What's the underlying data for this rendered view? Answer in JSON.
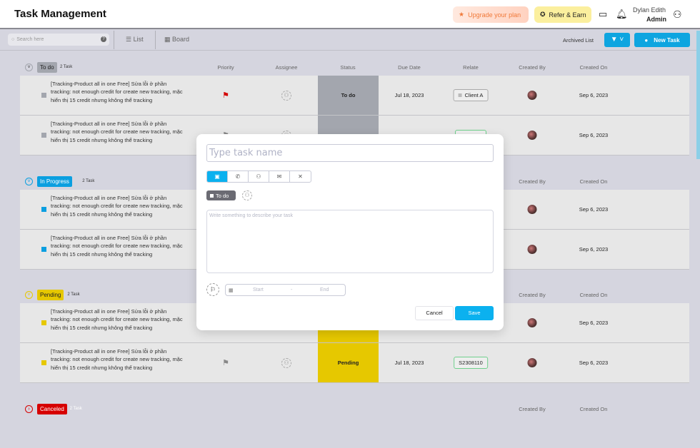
{
  "header": {
    "title": "Task Management",
    "upgrade": "Upgrade your plan",
    "refer": "Refer & Earn",
    "user_name": "Dylan Edith",
    "user_role": "Admin"
  },
  "toolbar": {
    "search_placeholder": "Search here",
    "help": "?",
    "list": "List",
    "board": "Board",
    "archived": "Archived List",
    "filter": "▼ ˅",
    "new_task": "New Task"
  },
  "columns": {
    "priority": "Priority",
    "assignee": "Assignee",
    "status": "Status",
    "due": "Due Date",
    "relate": "Relate",
    "created_by": "Created By",
    "created_on": "Created On"
  },
  "colors": {
    "todo": "#a3a6ae",
    "in_progress": "#0b9fe0",
    "pending": "#e6c800",
    "canceled": "#d60000",
    "accent": "#0bb1ef"
  },
  "sections": [
    {
      "label": "To do",
      "count": "2 Task",
      "color": "#a3a6ae",
      "text_color": "#222",
      "toggle": "˅",
      "show_cols": true,
      "rows": [
        {
          "task": "[Tracking-Product all in one Free]  Sửa lỗi ở phần tracking: not enough credit for create new tracking, mặc hiển thị 15 credit nhưng không thể tracking",
          "flag": "red",
          "status": "To do",
          "due": "Jul 18, 2023",
          "relate": "Client A",
          "relate_style": "gray",
          "created_on": "Sep 6, 2023"
        },
        {
          "task": "[Tracking-Product all in one Free]  Sửa lỗi ở phần tracking: not enough credit for create new tracking, mặc hiển thị 15 credit nhưng không thể tracking",
          "flag": "gray",
          "status": "",
          "due": "",
          "relate": "",
          "relate_style": "green",
          "created_on": "Sep 6, 2023"
        }
      ]
    },
    {
      "label": "In Progress",
      "count": "2 Task",
      "color": "#0b9fe0",
      "text_color": "#fff",
      "toggle": "˅",
      "show_cols": false,
      "rows": [
        {
          "task": "[Tracking-Product all in one Free]  Sửa lỗi ở phần tracking: not enough credit for create new tracking, mặc hiển thị 15 credit nhưng không thể tracking",
          "created_on": "Sep 6, 2023"
        },
        {
          "task": "[Tracking-Product all in one Free]  Sửa lỗi ở phần tracking: not enough credit for create new tracking, mặc hiển thị 15 credit nhưng không thể tracking",
          "created_on": "Sep 6, 2023"
        }
      ]
    },
    {
      "label": "Pending",
      "count": "2 Task",
      "color": "#e6c800",
      "text_color": "#222",
      "toggle": "˅",
      "show_cols": false,
      "rows": [
        {
          "task": "[Tracking-Product all in one Free]  Sửa lỗi ở phần tracking: not enough credit for create new tracking, mặc hiển thị 15 credit nhưng không thể tracking",
          "status": "",
          "created_on": "Sep 6, 2023"
        },
        {
          "task": "[Tracking-Product all in one Free]  Sửa lỗi ở phần tracking: not enough credit for create new tracking, mặc hiển thị 15 credit nhưng không thể tracking",
          "flag": "gray",
          "status": "Pending",
          "due": "Jul 18, 2023",
          "relate": "S2308110",
          "relate_style": "green",
          "created_on": "Sep 6, 2023"
        }
      ]
    },
    {
      "label": "Canceled",
      "count": "2 Task",
      "color": "#d60000",
      "text_color": "#fff",
      "toggle": "›",
      "show_cols": false,
      "rows": []
    }
  ],
  "modal": {
    "name_placeholder": "Type task name",
    "types": [
      "task-icon",
      "phone-icon",
      "meeting-icon",
      "email-icon",
      "tools-icon"
    ],
    "status": "To do",
    "desc_placeholder": "Write something to describe your task",
    "start": "Start",
    "dash": "-",
    "end": "End",
    "cancel": "Cancel",
    "save": "Save"
  }
}
